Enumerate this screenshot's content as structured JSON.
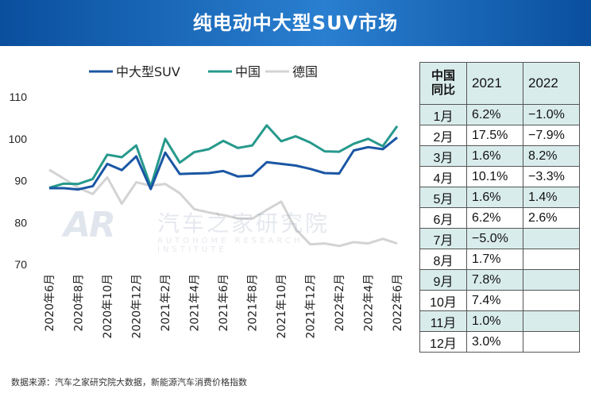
{
  "header": {
    "title": "纯电动中大型SUV市场"
  },
  "watermark": {
    "logo": "AR",
    "name": "汽车之家研究院",
    "name_en": "AUTOHOME RESEARCH INSTITUTE"
  },
  "source": "数据来源：汽车之家研究院大数据，新能源汽车消费价格指数",
  "colors": {
    "banner": "#1565b8",
    "suv": "#1a56a4",
    "china": "#26998c",
    "germany": "#d3d3d3",
    "table_shade": "#d9ecec"
  },
  "chart_data": {
    "type": "line",
    "x": [
      "2020年6月",
      "2020年7月",
      "2020年8月",
      "2020年9月",
      "2020年10月",
      "2020年11月",
      "2020年12月",
      "2021年1月",
      "2021年2月",
      "2021年3月",
      "2021年4月",
      "2021年5月",
      "2021年6月",
      "2021年7月",
      "2021年8月",
      "2021年9月",
      "2021年10月",
      "2021年11月",
      "2021年12月",
      "2022年1月",
      "2022年2月",
      "2022年3月",
      "2022年4月",
      "2022年5月",
      "2022年6月"
    ],
    "tick_labels": [
      "2020年6月",
      "2020年8月",
      "2020年10月",
      "2020年12月",
      "2021年2月",
      "2021年4月",
      "2021年6月",
      "2021年8月",
      "2021年10月",
      "2021年12月",
      "2022年2月",
      "2022年4月",
      "2022年6月"
    ],
    "ylim": [
      70,
      110
    ],
    "yticks": [
      70,
      80,
      90,
      100,
      110
    ],
    "legend_position": "top",
    "series": [
      {
        "name": "中大型SUV",
        "color": "#1a56a4",
        "values": [
          88.2,
          88.2,
          87.9,
          88.7,
          94.0,
          92.5,
          95.8,
          88.0,
          96.7,
          91.6,
          91.7,
          91.8,
          92.3,
          91.0,
          91.2,
          94.4,
          94.0,
          93.6,
          92.8,
          91.8,
          91.7,
          97.2,
          98.0,
          97.5,
          100.3
        ]
      },
      {
        "name": "中国",
        "color": "#26998c",
        "values": [
          88.3,
          89.3,
          89.2,
          90.4,
          96.2,
          95.6,
          98.4,
          88.6,
          100.0,
          94.3,
          96.8,
          97.5,
          99.5,
          97.8,
          98.4,
          103.2,
          99.4,
          100.6,
          99.1,
          97.0,
          96.9,
          98.8,
          100.0,
          98.2,
          103.0
        ]
      },
      {
        "name": "德国",
        "color": "#d3d3d3",
        "values": [
          92.6,
          90.5,
          88.3,
          86.8,
          90.8,
          84.5,
          89.6,
          88.8,
          89.2,
          87.0,
          83.2,
          82.4,
          81.8,
          81.0,
          80.9,
          83.0,
          85.0,
          78.4,
          74.8,
          75.0,
          74.4,
          75.3,
          75.0,
          76.1,
          75.0
        ]
      }
    ]
  },
  "table": {
    "head": {
      "label": "中国\n同比",
      "c2021": "2021",
      "c2022": "2022"
    },
    "rows": [
      {
        "month": "1月",
        "v2021": "6.2%",
        "v2022": "−1.0%"
      },
      {
        "month": "2月",
        "v2021": "17.5%",
        "v2022": "−7.9%"
      },
      {
        "month": "3月",
        "v2021": "1.6%",
        "v2022": "8.2%"
      },
      {
        "month": "4月",
        "v2021": "10.1%",
        "v2022": "−3.3%"
      },
      {
        "month": "5月",
        "v2021": "1.6%",
        "v2022": "1.4%"
      },
      {
        "month": "6月",
        "v2021": "6.2%",
        "v2022": "2.6%"
      },
      {
        "month": "7月",
        "v2021": "−5.0%",
        "v2022": ""
      },
      {
        "month": "8月",
        "v2021": "1.7%",
        "v2022": ""
      },
      {
        "month": "9月",
        "v2021": "7.8%",
        "v2022": ""
      },
      {
        "month": "10月",
        "v2021": "7.4%",
        "v2022": ""
      },
      {
        "month": "11月",
        "v2021": "1.0%",
        "v2022": ""
      },
      {
        "month": "12月",
        "v2021": "3.0%",
        "v2022": ""
      }
    ]
  }
}
